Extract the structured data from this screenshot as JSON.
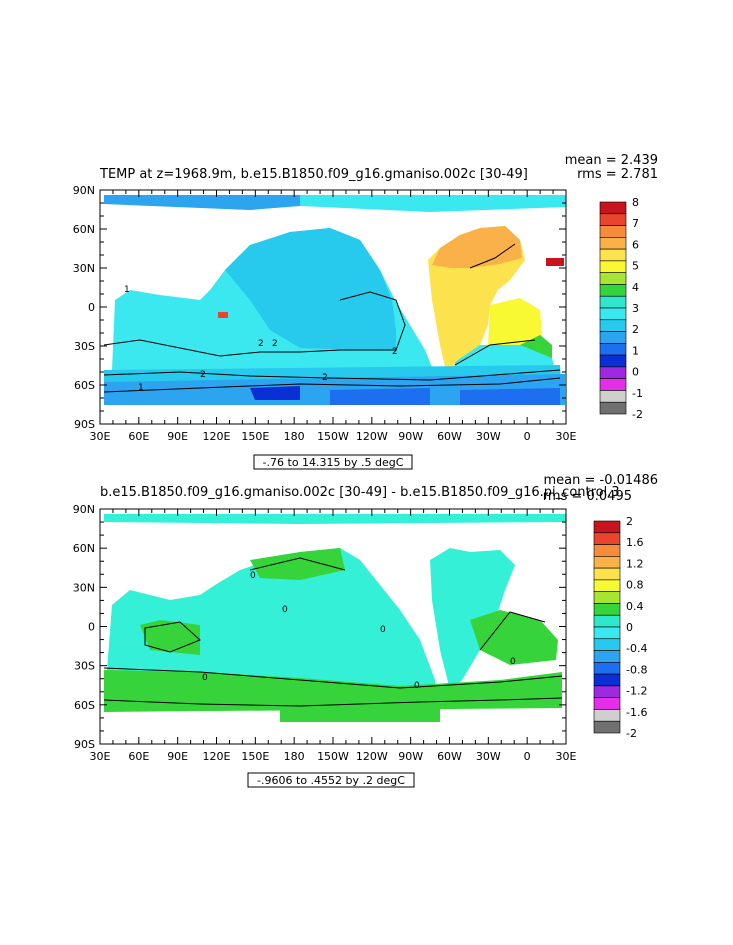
{
  "panels": [
    {
      "id": "top",
      "title": "TEMP at z=1968.9m, b.e15.B1850.f09_g16.gmaniso.002c [30-49]",
      "stats": {
        "mean": "mean = 2.439",
        "rms": "rms = 2.781"
      },
      "range_label": "-.76 to 14.315 by .5 degC",
      "colorbar": {
        "labels": [
          "8",
          "7",
          "6",
          "5",
          "4",
          "3",
          "2",
          "1",
          "0",
          "-1",
          "-2"
        ],
        "colors": [
          "#c8141e",
          "#e8452c",
          "#f58c3c",
          "#fbb14a",
          "#fce24c",
          "#f8f833",
          "#a6e632",
          "#36d43a",
          "#2fe8cc",
          "#3ce8f0",
          "#27c9ec",
          "#2ca4ef",
          "#1e6ff0",
          "#0a2fd6",
          "#9d2ae0",
          "#e42ee8",
          "#cfcfcf",
          "#707070"
        ]
      },
      "contour_labels": [
        "2",
        "2",
        "2",
        "2",
        "2",
        "1",
        "1"
      ]
    },
    {
      "id": "bottom",
      "title": "b.e15.B1850.f09_g16.gmaniso.002c [30-49] - b.e15.B1850.f09_g16.pi_control.3",
      "stats": {
        "mean": "mean = -0.01486",
        "rms": "rms = 0.0495"
      },
      "range_label": "-.9606 to .4552 by .2 degC",
      "colorbar": {
        "labels": [
          "2",
          "1.6",
          "1.2",
          "0.8",
          "0.4",
          "0",
          "-0.4",
          "-0.8",
          "-1.2",
          "-1.6",
          "-2"
        ],
        "colors": [
          "#c8141e",
          "#e8452c",
          "#f58c3c",
          "#fbb14a",
          "#fce24c",
          "#f8f833",
          "#a6e632",
          "#36d43a",
          "#2fe8cc",
          "#3ce8f0",
          "#27c9ec",
          "#2ca4ef",
          "#1e6ff0",
          "#0a2fd6",
          "#9d2ae0",
          "#e42ee8",
          "#cfcfcf",
          "#707070"
        ]
      },
      "contour_labels": [
        "0",
        "0",
        "0",
        "0",
        "0",
        "0"
      ]
    }
  ],
  "axes": {
    "y_ticks": [
      "90N",
      "60N",
      "30N",
      "0",
      "30S",
      "60S",
      "90S"
    ],
    "x_ticks": [
      "30E",
      "60E",
      "90E",
      "120E",
      "150E",
      "180",
      "150W",
      "120W",
      "90W",
      "60W",
      "30W",
      "0",
      "30E"
    ]
  },
  "colors": {
    "ocean_top": "#2fe8e8",
    "ocean_bottom": "#33f0d6",
    "land": "#ffffff"
  }
}
